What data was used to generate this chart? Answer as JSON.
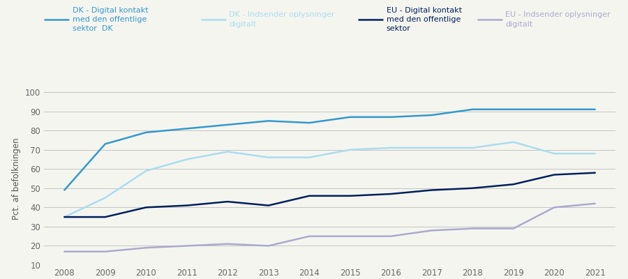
{
  "years": [
    2008,
    2009,
    2010,
    2011,
    2012,
    2013,
    2014,
    2015,
    2016,
    2017,
    2018,
    2019,
    2020,
    2021
  ],
  "dk_digital_kontakt": [
    49,
    73,
    79,
    81,
    83,
    85,
    84,
    87,
    87,
    88,
    91,
    91,
    91,
    91
  ],
  "dk_indsender": [
    35,
    45,
    59,
    65,
    69,
    66,
    66,
    70,
    71,
    71,
    71,
    74,
    68,
    68
  ],
  "eu_digital_kontakt": [
    35,
    35,
    40,
    41,
    43,
    41,
    46,
    46,
    47,
    49,
    50,
    52,
    57,
    58
  ],
  "eu_indsender": [
    17,
    17,
    19,
    20,
    21,
    20,
    25,
    25,
    25,
    28,
    29,
    29,
    40,
    42
  ],
  "series_labels": [
    "DK - Digital kontakt\nmed den offentlige\nsektor  DK",
    "DK - Indsender oplysninger\ndigitalt",
    "EU - Digital kontakt\nmed den offentlige\nsektor",
    "EU - Indsender oplysninger\ndigitalt"
  ],
  "colors": [
    "#3399CC",
    "#AADDEE",
    "#00205B",
    "#AAAACC"
  ],
  "ylabel": "Pct. af befolkningen",
  "ylim": [
    10,
    100
  ],
  "yticks": [
    10,
    20,
    30,
    40,
    50,
    60,
    70,
    80,
    90,
    100
  ],
  "background_color": "#f5f5f0",
  "grid_color": "#BBBBBB",
  "linewidth": 1.8,
  "legend_fontsize": 8.0,
  "axis_fontsize": 8.5,
  "ylabel_fontsize": 8.5
}
